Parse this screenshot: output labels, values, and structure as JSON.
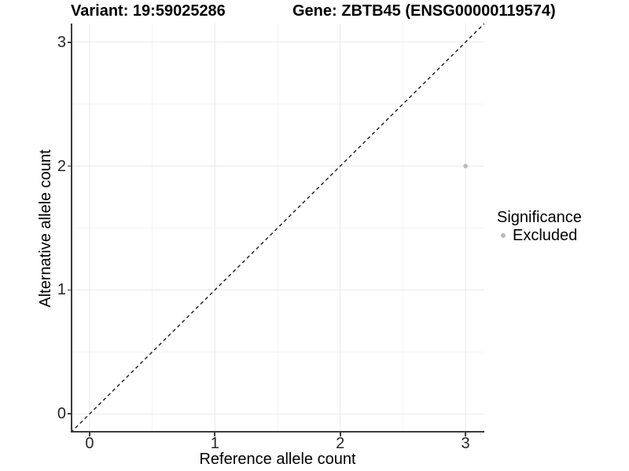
{
  "chart_data": {
    "type": "scatter",
    "titles": {
      "variant": "Variant: 19:59025286",
      "gene": "Gene: ZBTB45 (ENSG00000119574)"
    },
    "xlabel": "Reference allele count",
    "ylabel": "Alternative allele count",
    "xlim": [
      -0.15,
      3.15
    ],
    "ylim": [
      -0.15,
      3.15
    ],
    "x_ticks": {
      "values": [
        0,
        1,
        2,
        3
      ],
      "labels": [
        "0",
        "1",
        "2",
        "3"
      ]
    },
    "y_ticks": {
      "values": [
        0,
        1,
        2,
        3
      ],
      "labels": [
        "0",
        "1",
        "2",
        "3"
      ]
    },
    "minor_gridlines": [
      0.5,
      1.5,
      2.5
    ],
    "grid": {
      "major": true,
      "minor": true
    },
    "points": [
      {
        "x": 3,
        "y": 2,
        "significance": "Excluded"
      }
    ],
    "identity_line": {
      "slope": 1,
      "intercept": 0,
      "style": "dashed"
    },
    "legend": {
      "title": "Significance",
      "position": "right",
      "entries": [
        {
          "label": "Excluded",
          "color": "#b9b9b9"
        }
      ]
    },
    "colors": {
      "background": "#ffffff",
      "grid_major": "#ebebeb",
      "grid_minor": "#f4f4f4",
      "axis_line": "#3c3c3c",
      "dashed_line": "#1a1a1a",
      "point": "#b9b9b9",
      "title_text": "#000000",
      "tick_text": "#262626"
    }
  }
}
